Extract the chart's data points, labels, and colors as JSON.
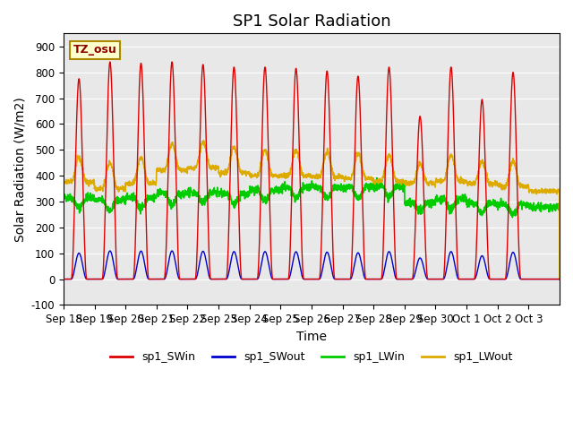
{
  "title": "SP1 Solar Radiation",
  "xlabel": "Time",
  "ylabel": "Solar Radiation (W/m2)",
  "ylim": [
    -100,
    950
  ],
  "background_color": "#e8e8e8",
  "figure_bg": "#ffffff",
  "colors": {
    "SWin": "#dd0000",
    "SWout": "#0000cc",
    "LWin": "#00cc00",
    "LWout": "#ddaa00"
  },
  "legend_labels": [
    "sp1_SWin",
    "sp1_SWout",
    "sp1_LWin",
    "sp1_LWout"
  ],
  "tz_label": "TZ_osu",
  "x_tick_labels": [
    "Sep 18",
    "Sep 19",
    "Sep 20",
    "Sep 21",
    "Sep 22",
    "Sep 23",
    "Sep 24",
    "Sep 25",
    "Sep 26",
    "Sep 27",
    "Sep 28",
    "Sep 29",
    "Sep 30",
    "Oct 1",
    "Oct 2",
    "Oct 3"
  ],
  "num_days": 16,
  "sw_peaks": [
    775,
    840,
    835,
    840,
    830,
    820,
    820,
    815,
    805,
    785,
    820,
    630,
    820,
    695,
    800,
    0
  ],
  "lw_out_base": [
    375,
    350,
    370,
    420,
    430,
    410,
    400,
    400,
    395,
    390,
    380,
    370,
    380,
    370,
    360,
    340
  ],
  "lw_in_base": [
    315,
    305,
    315,
    330,
    335,
    330,
    345,
    355,
    355,
    355,
    360,
    295,
    310,
    295,
    290,
    280
  ],
  "title_fontsize": 13,
  "axis_fontsize": 10,
  "tick_fontsize": 8.5,
  "legend_fontsize": 9
}
